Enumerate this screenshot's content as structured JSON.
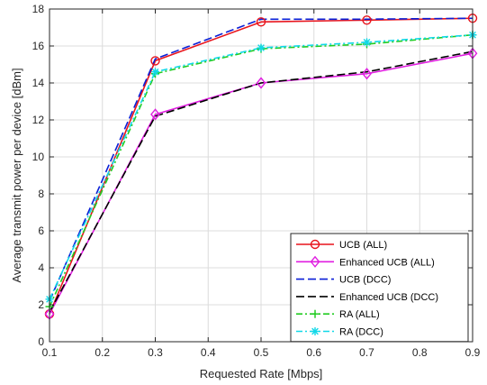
{
  "chart_data": {
    "type": "line",
    "xlabel": "Requested Rate [Mbps]",
    "ylabel": "Average transmit power per device [dBm]",
    "xlim": [
      0.1,
      0.9
    ],
    "ylim": [
      0,
      18
    ],
    "xticks": [
      "0.1",
      "0.2",
      "0.3",
      "0.4",
      "0.5",
      "0.6",
      "0.7",
      "0.8",
      "0.9"
    ],
    "yticks": [
      "0",
      "2",
      "4",
      "6",
      "8",
      "10",
      "12",
      "14",
      "16",
      "18"
    ],
    "grid": true,
    "legend_position": "bottom-right",
    "x": [
      0.1,
      0.3,
      0.5,
      0.7,
      0.9
    ],
    "series": [
      {
        "name": "UCB (ALL)",
        "values": [
          1.5,
          15.2,
          17.3,
          17.4,
          17.5
        ],
        "color": "#e8141c",
        "dash": "solid",
        "marker": "circle"
      },
      {
        "name": "Enhanced UCB (ALL)",
        "values": [
          1.5,
          12.3,
          14.0,
          14.5,
          15.6
        ],
        "color": "#e01ee0",
        "dash": "solid",
        "marker": "diamond"
      },
      {
        "name": "UCB (DCC)",
        "values": [
          2.2,
          15.3,
          17.45,
          17.45,
          17.5
        ],
        "color": "#0a1fd6",
        "dash": "dashed",
        "marker": "none"
      },
      {
        "name": "Enhanced UCB (DCC)",
        "values": [
          1.6,
          12.2,
          14.0,
          14.6,
          15.7
        ],
        "color": "#000000",
        "dash": "dashed",
        "marker": "none"
      },
      {
        "name": "RA (ALL)",
        "values": [
          1.9,
          14.5,
          15.85,
          16.1,
          16.6
        ],
        "color": "#22cc22",
        "dash": "dashdot",
        "marker": "plus"
      },
      {
        "name": "RA (DCC)",
        "values": [
          2.3,
          14.6,
          15.9,
          16.2,
          16.6
        ],
        "color": "#11d8e8",
        "dash": "dashdot",
        "marker": "asterisk"
      }
    ]
  }
}
